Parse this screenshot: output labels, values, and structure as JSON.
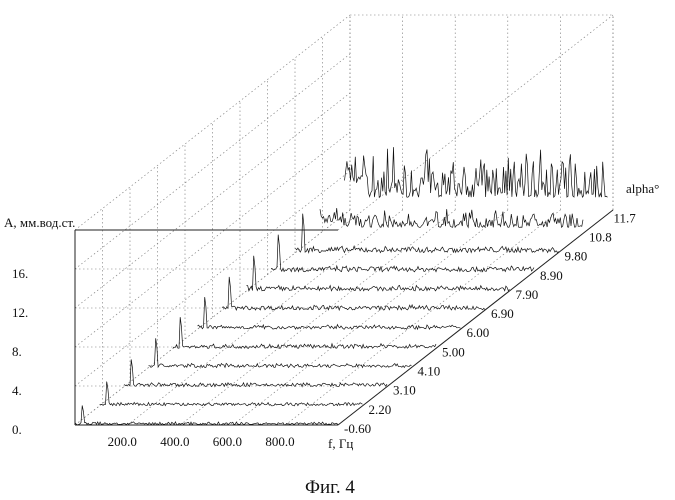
{
  "chart_data": {
    "type": "line",
    "style": "3d-waterfall",
    "ylabel": "A, мм.вод.ст.",
    "xlabel": "f, Гц",
    "zlabel": "alpha°",
    "caption": "Фиг. 4",
    "y_ticks": [
      "0.",
      "4.",
      "8.",
      "12.",
      "16."
    ],
    "x_ticks": [
      "200.0",
      "400.0",
      "600.0",
      "800.0"
    ],
    "z_ticks": [
      "-0.60",
      "2.20",
      "3.10",
      "4.10",
      "5.00",
      "6.00",
      "6.90",
      "7.90",
      "8.90",
      "9.80",
      "10.8",
      "11.7"
    ],
    "xlim": [
      0,
      1000
    ],
    "ylim": [
      0,
      20
    ],
    "series": [
      {
        "name": "-0.60",
        "peak": 2.0,
        "noise": 0.35
      },
      {
        "name": "2.20",
        "peak": 2.5,
        "noise": 0.4
      },
      {
        "name": "3.10",
        "peak": 2.8,
        "noise": 0.45
      },
      {
        "name": "4.10",
        "peak": 3.0,
        "noise": 0.45
      },
      {
        "name": "5.00",
        "peak": 3.2,
        "noise": 0.5
      },
      {
        "name": "6.00",
        "peak": 3.3,
        "noise": 0.5
      },
      {
        "name": "6.90",
        "peak": 3.4,
        "noise": 0.55
      },
      {
        "name": "7.90",
        "peak": 3.6,
        "noise": 0.6
      },
      {
        "name": "8.90",
        "peak": 3.8,
        "noise": 0.65
      },
      {
        "name": "9.80",
        "peak": 4.0,
        "noise": 0.7
      },
      {
        "name": "10.8",
        "peak": 6.0,
        "noise": 2.5
      },
      {
        "name": "11.7",
        "peak": 12.0,
        "noise": 7.0
      }
    ]
  }
}
